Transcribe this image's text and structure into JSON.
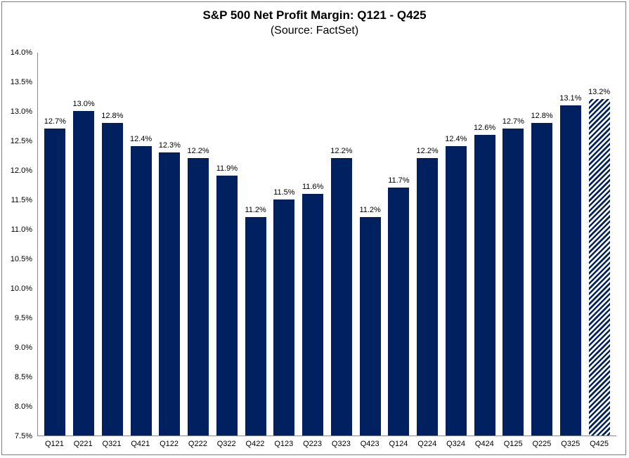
{
  "header": {
    "title": "S&P 500 Net Profit Margin: Q121 - Q425",
    "subtitle": "(Source: FactSet)"
  },
  "chart_data": {
    "type": "bar",
    "title": "S&P 500 Net Profit Margin: Q121 - Q425",
    "subtitle": "(Source: FactSet)",
    "categories": [
      "Q121",
      "Q221",
      "Q321",
      "Q421",
      "Q122",
      "Q222",
      "Q322",
      "Q422",
      "Q123",
      "Q223",
      "Q323",
      "Q423",
      "Q124",
      "Q224",
      "Q324",
      "Q424",
      "Q125",
      "Q225",
      "Q325",
      "Q425"
    ],
    "values": [
      12.7,
      13.0,
      12.8,
      12.4,
      12.3,
      12.2,
      11.9,
      11.2,
      11.5,
      11.6,
      12.2,
      11.2,
      11.7,
      12.2,
      12.4,
      12.6,
      12.7,
      12.8,
      13.1,
      13.2
    ],
    "labels": [
      "12.7%",
      "13.0%",
      "12.8%",
      "12.4%",
      "12.3%",
      "12.2%",
      "11.9%",
      "11.2%",
      "11.5%",
      "11.6%",
      "12.2%",
      "11.2%",
      "11.7%",
      "12.2%",
      "12.4%",
      "12.6%",
      "12.7%",
      "12.8%",
      "13.1%",
      "13.2%"
    ],
    "ylim": [
      7.5,
      14.0
    ],
    "ytick_step": 0.5,
    "ytick_labels": [
      "14.0%",
      "13.5%",
      "13.0%",
      "12.5%",
      "12.0%",
      "11.5%",
      "11.0%",
      "10.5%",
      "10.0%",
      "9.5%",
      "9.0%",
      "8.5%",
      "8.0%",
      "7.5%"
    ],
    "xlabel": "",
    "ylabel": "",
    "grid": false,
    "legend_position": "none",
    "bar_color": "#002060",
    "hatched_indices": [
      19
    ],
    "axis_color": "#8a8a8a",
    "frame_border_color": "#7f7f7f"
  }
}
